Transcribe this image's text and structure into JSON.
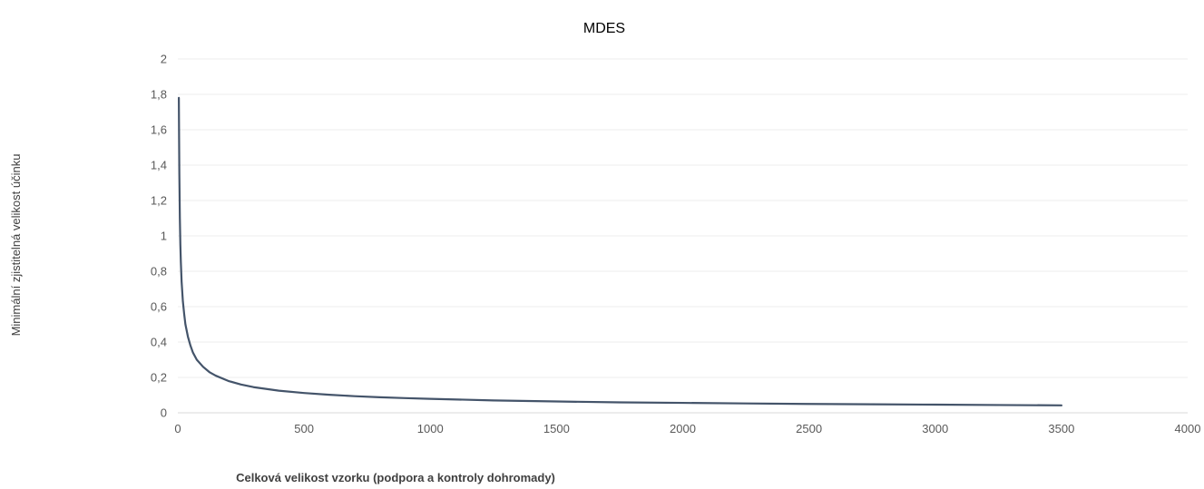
{
  "chart_data": {
    "type": "line",
    "title": "MDES",
    "xlabel": "Celková velikost vzorku (podpora a kontroly dohromady)",
    "ylabel": "Minimální zjistitelná velikost účinku",
    "xlim": [
      0,
      4000
    ],
    "ylim": [
      0,
      2
    ],
    "x_ticks": [
      0,
      500,
      1000,
      1500,
      2000,
      2500,
      3000,
      3500,
      4000
    ],
    "x_tick_labels": [
      "0",
      "500",
      "1000",
      "1500",
      "2000",
      "2500",
      "3000",
      "3500",
      "4000"
    ],
    "y_ticks": [
      0,
      0.2,
      0.4,
      0.6,
      0.8,
      1,
      1.2,
      1.4,
      1.6,
      1.8,
      2
    ],
    "y_tick_labels": [
      "0",
      "0,2",
      "0,4",
      "0,6",
      "0,8",
      "1",
      "1,2",
      "1,4",
      "1,6",
      "1,8",
      "2"
    ],
    "grid": "horizontal",
    "legend": "none",
    "series": [
      {
        "color": "#44546a",
        "points": [
          [
            4,
            1.78
          ],
          [
            5,
            1.55
          ],
          [
            6,
            1.35
          ],
          [
            8,
            1.1
          ],
          [
            10,
            0.95
          ],
          [
            12,
            0.85
          ],
          [
            15,
            0.74
          ],
          [
            20,
            0.63
          ],
          [
            25,
            0.56
          ],
          [
            30,
            0.5
          ],
          [
            40,
            0.43
          ],
          [
            50,
            0.38
          ],
          [
            60,
            0.34
          ],
          [
            75,
            0.3
          ],
          [
            100,
            0.26
          ],
          [
            125,
            0.23
          ],
          [
            150,
            0.21
          ],
          [
            200,
            0.18
          ],
          [
            250,
            0.16
          ],
          [
            300,
            0.145
          ],
          [
            400,
            0.125
          ],
          [
            500,
            0.112
          ],
          [
            600,
            0.102
          ],
          [
            700,
            0.094
          ],
          [
            800,
            0.088
          ],
          [
            900,
            0.083
          ],
          [
            1000,
            0.079
          ],
          [
            1250,
            0.07
          ],
          [
            1500,
            0.064
          ],
          [
            1750,
            0.059
          ],
          [
            2000,
            0.056
          ],
          [
            2250,
            0.053
          ],
          [
            2500,
            0.05
          ],
          [
            2750,
            0.048
          ],
          [
            3000,
            0.046
          ],
          [
            3250,
            0.044
          ],
          [
            3500,
            0.042
          ]
        ]
      }
    ]
  }
}
